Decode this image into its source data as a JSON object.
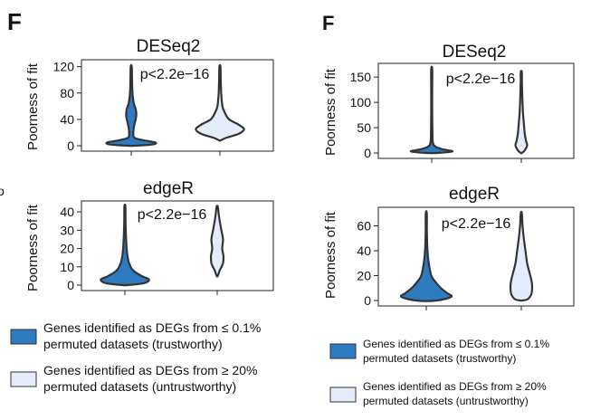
{
  "colors": {
    "trustworthy": "#2E7BC0",
    "untrustworthy": "#E3ECF8",
    "outline": "#333333"
  },
  "chart_data": [
    {
      "type": "violin",
      "title": "DESeq2",
      "ylabel": "Poorness of fit",
      "yticks": [
        0,
        40,
        80,
        120
      ],
      "ylim": [
        0,
        125
      ],
      "annotation": "p<2.2e−16",
      "series": [
        {
          "legend_index": 0,
          "profile": [
            [
              0,
              0.07
            ],
            [
              2,
              0.52
            ],
            [
              5,
              0.58
            ],
            [
              8,
              0.32
            ],
            [
              12,
              0.08
            ],
            [
              20,
              0.05
            ],
            [
              30,
              0.07
            ],
            [
              45,
              0.12
            ],
            [
              55,
              0.11
            ],
            [
              65,
              0.06
            ],
            [
              80,
              0.03
            ],
            [
              100,
              0.02
            ],
            [
              120,
              0.0
            ]
          ]
        },
        {
          "legend_index": 1,
          "profile": [
            [
              8,
              0.0
            ],
            [
              12,
              0.15
            ],
            [
              18,
              0.45
            ],
            [
              25,
              0.58
            ],
            [
              32,
              0.45
            ],
            [
              40,
              0.22
            ],
            [
              50,
              0.12
            ],
            [
              60,
              0.06
            ],
            [
              80,
              0.03
            ],
            [
              100,
              0.02
            ],
            [
              120,
              0.0
            ]
          ]
        }
      ]
    },
    {
      "type": "violin",
      "title": "edgeR",
      "ylabel": "Poorness of fit",
      "yticks": [
        0,
        10,
        20,
        30,
        40
      ],
      "ylim": [
        0,
        44
      ],
      "annotation": "p<2.2e−16",
      "series": [
        {
          "legend_index": 0,
          "profile": [
            [
              0,
              0.05
            ],
            [
              1,
              0.45
            ],
            [
              3,
              0.58
            ],
            [
              5,
              0.4
            ],
            [
              8,
              0.2
            ],
            [
              12,
              0.1
            ],
            [
              18,
              0.05
            ],
            [
              25,
              0.03
            ],
            [
              35,
              0.015
            ],
            [
              43,
              0.0
            ]
          ]
        },
        {
          "legend_index": 1,
          "profile": [
            [
              5,
              0.0
            ],
            [
              8,
              0.06
            ],
            [
              12,
              0.14
            ],
            [
              16,
              0.15
            ],
            [
              20,
              0.12
            ],
            [
              25,
              0.14
            ],
            [
              30,
              0.1
            ],
            [
              35,
              0.06
            ],
            [
              40,
              0.03
            ],
            [
              43,
              0.0
            ]
          ]
        }
      ]
    },
    {
      "type": "violin",
      "title": "DESeq2",
      "ylabel": "Poorness of fit",
      "yticks": [
        0,
        50,
        100,
        150
      ],
      "ylim": [
        0,
        170
      ],
      "annotation": "p<2.2e−16",
      "series": [
        {
          "legend_index": 0,
          "profile": [
            [
              0,
              0.12
            ],
            [
              3,
              0.5
            ],
            [
              7,
              0.28
            ],
            [
              12,
              0.1
            ],
            [
              20,
              0.03
            ],
            [
              40,
              0.018
            ],
            [
              80,
              0.012
            ],
            [
              120,
              0.008
            ],
            [
              165,
              0.0
            ]
          ]
        },
        {
          "legend_index": 1,
          "profile": [
            [
              0,
              0.0
            ],
            [
              5,
              0.08
            ],
            [
              15,
              0.14
            ],
            [
              25,
              0.11
            ],
            [
              40,
              0.08
            ],
            [
              60,
              0.06
            ],
            [
              80,
              0.04
            ],
            [
              110,
              0.025
            ],
            [
              140,
              0.015
            ],
            [
              160,
              0.0
            ]
          ]
        }
      ]
    },
    {
      "type": "violin",
      "title": "edgeR",
      "ylabel": "Poorness of fit",
      "yticks": [
        0,
        20,
        40,
        60
      ],
      "ylim": [
        0,
        72
      ],
      "annotation": "p<2.2e−16",
      "series": [
        {
          "legend_index": 0,
          "profile": [
            [
              0,
              0.25
            ],
            [
              3,
              0.6
            ],
            [
              6,
              0.5
            ],
            [
              10,
              0.35
            ],
            [
              15,
              0.22
            ],
            [
              20,
              0.12
            ],
            [
              30,
              0.06
            ],
            [
              40,
              0.03
            ],
            [
              55,
              0.015
            ],
            [
              70,
              0.0
            ]
          ]
        },
        {
          "legend_index": 1,
          "profile": [
            [
              0,
              0.0
            ],
            [
              1,
              0.15
            ],
            [
              5,
              0.24
            ],
            [
              10,
              0.26
            ],
            [
              15,
              0.25
            ],
            [
              22,
              0.2
            ],
            [
              30,
              0.14
            ],
            [
              40,
              0.1
            ],
            [
              50,
              0.06
            ],
            [
              60,
              0.03
            ],
            [
              70,
              0.0
            ]
          ]
        }
      ]
    }
  ],
  "panel_letters": [
    "F",
    "F"
  ],
  "edge_fragment": "o",
  "legends": [
    {
      "items": [
        {
          "label_line1": "Genes identified as DEGs from ≤ 0.1%",
          "label_line2": "permuted datasets (trustworthy)",
          "color": "#2E7BC0"
        },
        {
          "label_line1": "Genes identified as DEGs from ≥ 20%",
          "label_line2": "permuted datasets (untrustworthy)",
          "color": "#E3ECF8"
        }
      ]
    },
    {
      "items": [
        {
          "label_line1": "Genes identified as DEGs from ≤ 0.1%",
          "label_line2": "permuted datasets (trustworthy)",
          "color": "#2E7BC0"
        },
        {
          "label_line1": "Genes identified as DEGs from ≥ 20%",
          "label_line2": "permuted datasets (untrustworthy)",
          "color": "#E3ECF8"
        }
      ]
    }
  ]
}
